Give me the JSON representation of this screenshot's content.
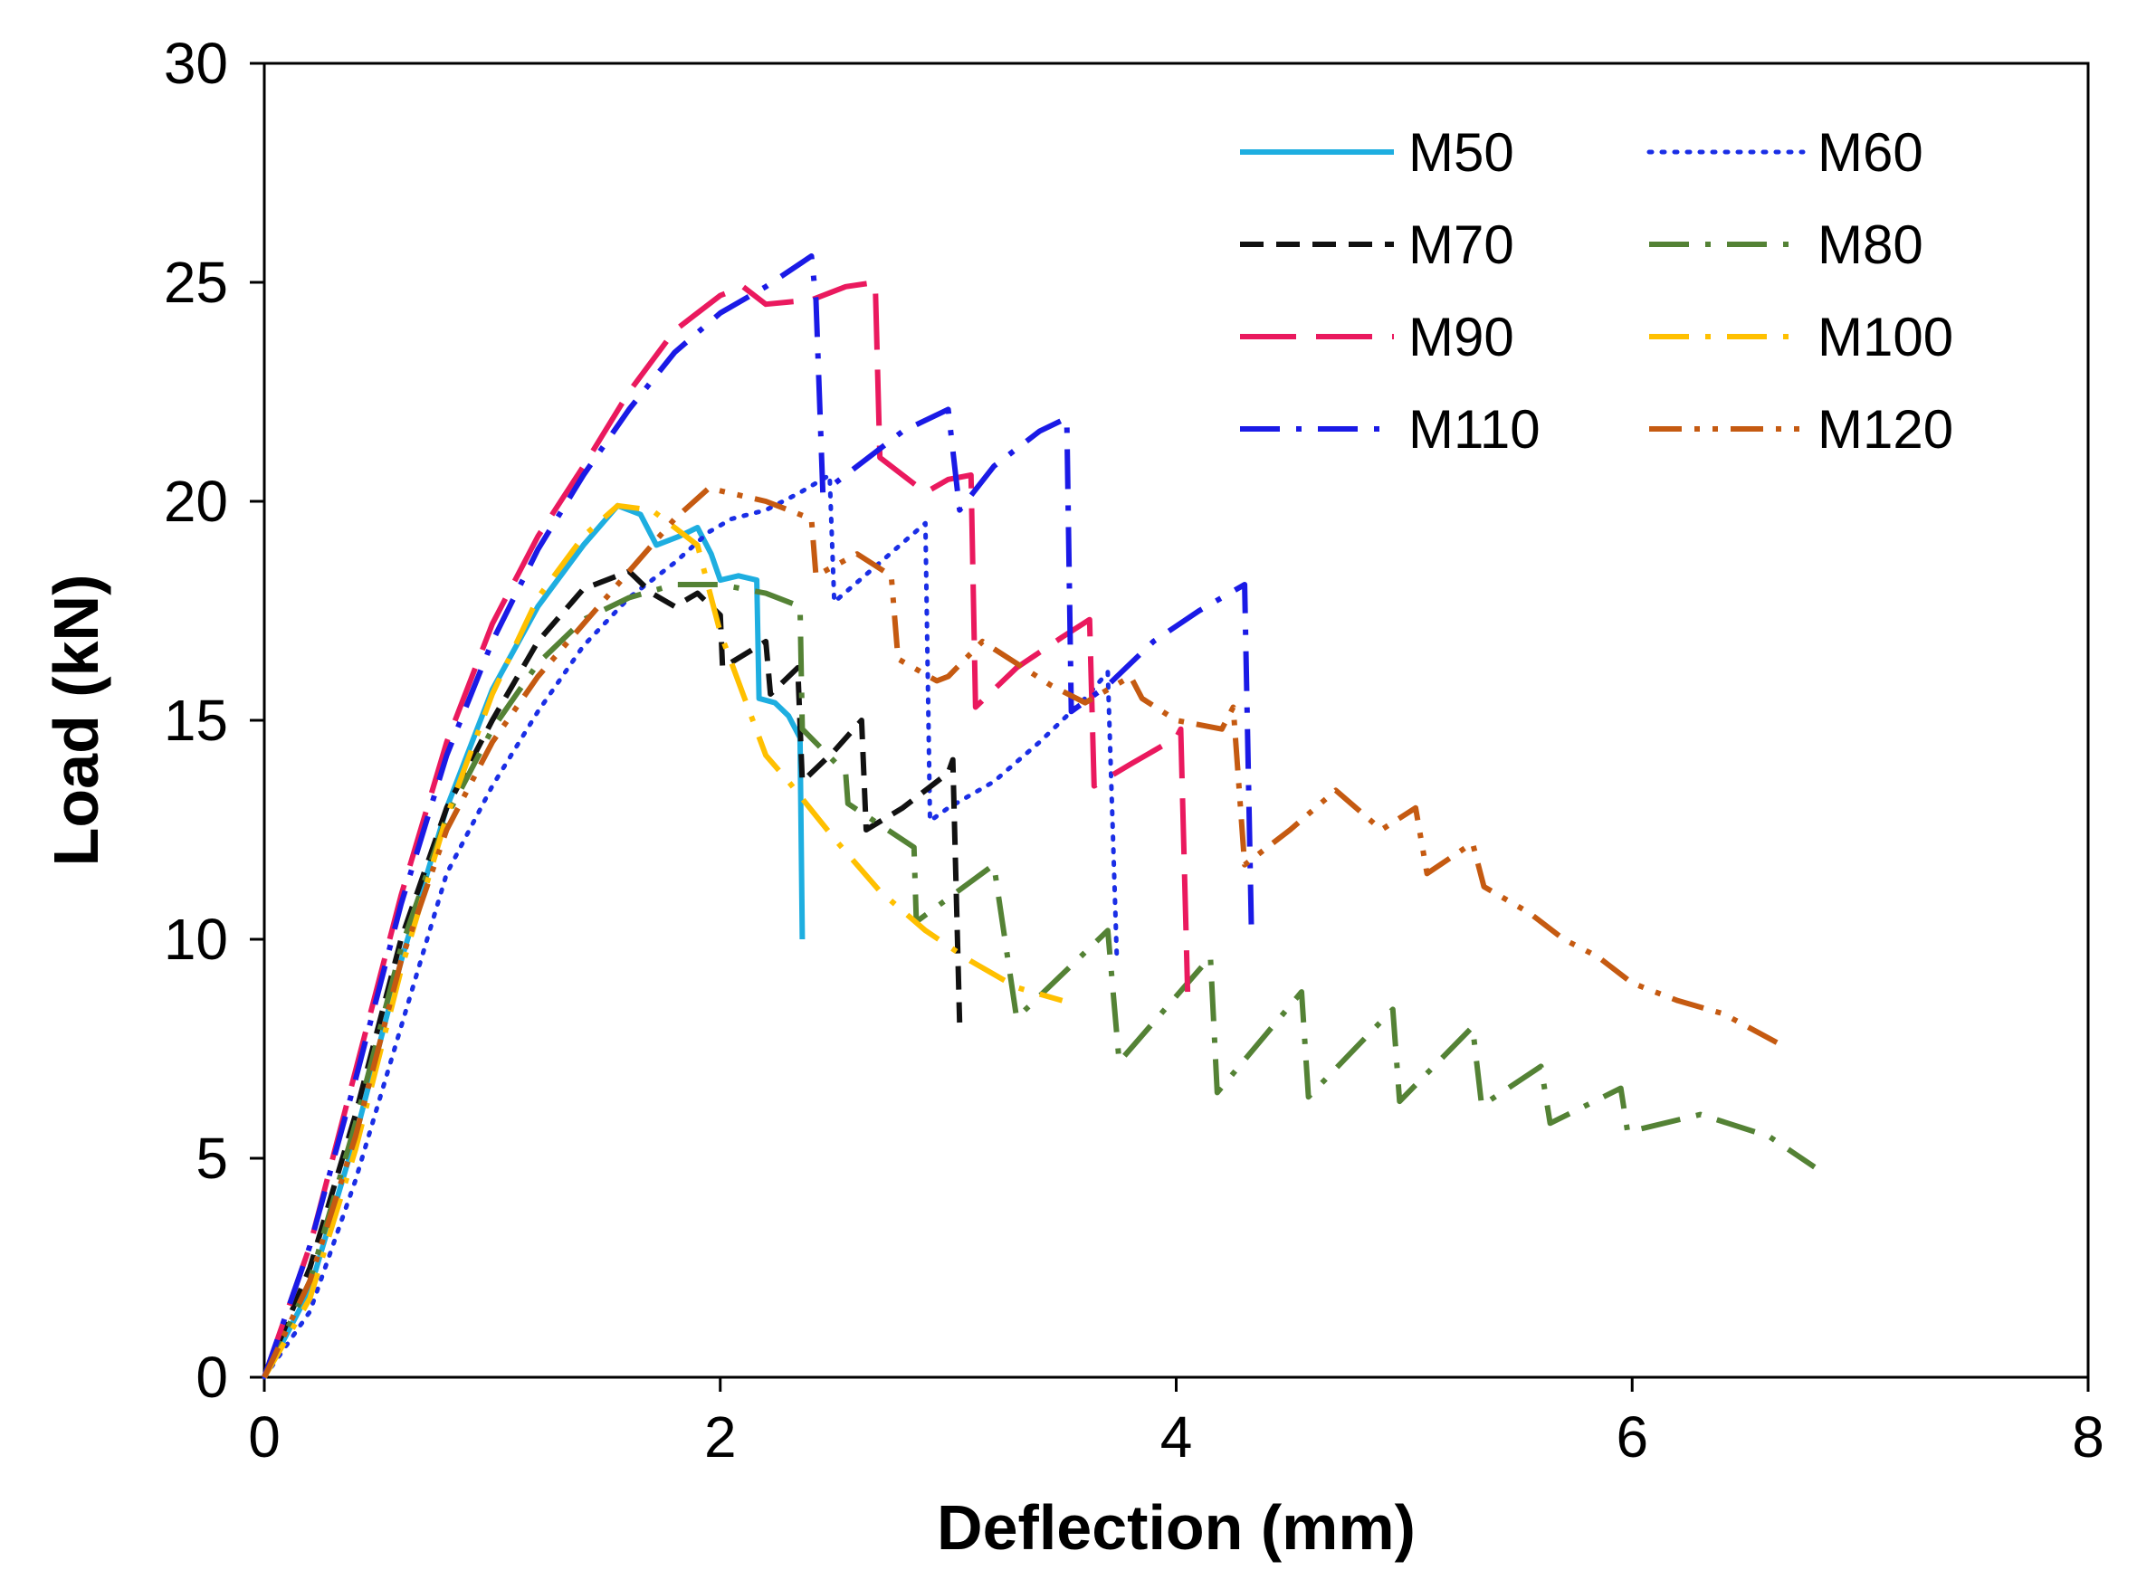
{
  "chart_data": {
    "type": "line",
    "title": "",
    "xlabel": "Deflection (mm)",
    "ylabel": "Load (kN)",
    "xlim": [
      0,
      8
    ],
    "ylim": [
      0,
      30
    ],
    "xticks": [
      0,
      2,
      4,
      6,
      8
    ],
    "yticks": [
      0,
      5,
      10,
      15,
      20,
      25,
      30
    ],
    "grid": false,
    "legend_position": "top-right",
    "series": [
      {
        "name": "M50",
        "color": "#1eaee0",
        "dash": "solid",
        "points": [
          [
            0,
            0
          ],
          [
            0.2,
            2
          ],
          [
            0.4,
            5.5
          ],
          [
            0.6,
            9.5
          ],
          [
            0.8,
            13
          ],
          [
            1.0,
            15.7
          ],
          [
            1.2,
            17.6
          ],
          [
            1.4,
            19.0
          ],
          [
            1.55,
            19.9
          ],
          [
            1.65,
            19.7
          ],
          [
            1.72,
            19.0
          ],
          [
            1.82,
            19.2
          ],
          [
            1.9,
            19.4
          ],
          [
            1.96,
            18.8
          ],
          [
            2.0,
            18.2
          ],
          [
            2.08,
            18.3
          ],
          [
            2.16,
            18.2
          ],
          [
            2.17,
            15.5
          ],
          [
            2.24,
            15.4
          ],
          [
            2.3,
            15.1
          ],
          [
            2.35,
            14.6
          ],
          [
            2.36,
            10.0
          ]
        ]
      },
      {
        "name": "M60",
        "color": "#1a2ee6",
        "dash": "dotted",
        "points": [
          [
            0,
            0
          ],
          [
            0.2,
            1.5
          ],
          [
            0.4,
            4.5
          ],
          [
            0.6,
            8.0
          ],
          [
            0.8,
            11.5
          ],
          [
            1.0,
            13.5
          ],
          [
            1.2,
            15.2
          ],
          [
            1.4,
            16.7
          ],
          [
            1.6,
            17.8
          ],
          [
            1.8,
            18.6
          ],
          [
            1.95,
            19.3
          ],
          [
            2.05,
            19.6
          ],
          [
            2.2,
            19.8
          ],
          [
            2.35,
            20.2
          ],
          [
            2.48,
            20.6
          ],
          [
            2.5,
            17.7
          ],
          [
            2.7,
            18.6
          ],
          [
            2.9,
            19.5
          ],
          [
            2.92,
            12.7
          ],
          [
            3.0,
            13.0
          ],
          [
            3.2,
            13.6
          ],
          [
            3.4,
            14.5
          ],
          [
            3.6,
            15.5
          ],
          [
            3.7,
            16.1
          ],
          [
            3.74,
            9.5
          ]
        ]
      },
      {
        "name": "M70",
        "color": "#111111",
        "dash": "dashed",
        "points": [
          [
            0,
            0
          ],
          [
            0.2,
            2.5
          ],
          [
            0.4,
            6.0
          ],
          [
            0.6,
            10.0
          ],
          [
            0.8,
            13.0
          ],
          [
            1.0,
            15.0
          ],
          [
            1.2,
            16.8
          ],
          [
            1.4,
            18.0
          ],
          [
            1.6,
            18.4
          ],
          [
            1.7,
            17.9
          ],
          [
            1.8,
            17.6
          ],
          [
            1.9,
            17.9
          ],
          [
            2.0,
            17.4
          ],
          [
            2.01,
            16.2
          ],
          [
            2.2,
            16.8
          ],
          [
            2.22,
            15.6
          ],
          [
            2.34,
            16.2
          ],
          [
            2.36,
            13.6
          ],
          [
            2.5,
            14.3
          ],
          [
            2.62,
            15.0
          ],
          [
            2.64,
            12.5
          ],
          [
            2.8,
            13.0
          ],
          [
            3.0,
            13.8
          ],
          [
            3.02,
            14.1
          ],
          [
            3.05,
            8.1
          ]
        ]
      },
      {
        "name": "M80",
        "color": "#548235",
        "dash": "dashdot",
        "points": [
          [
            0,
            0
          ],
          [
            0.2,
            2.2
          ],
          [
            0.4,
            5.8
          ],
          [
            0.6,
            9.8
          ],
          [
            0.8,
            12.8
          ],
          [
            1.0,
            14.8
          ],
          [
            1.2,
            16.3
          ],
          [
            1.4,
            17.3
          ],
          [
            1.6,
            17.8
          ],
          [
            1.8,
            18.1
          ],
          [
            2.0,
            18.1
          ],
          [
            2.2,
            17.9
          ],
          [
            2.35,
            17.6
          ],
          [
            2.36,
            14.8
          ],
          [
            2.55,
            13.8
          ],
          [
            2.56,
            13.1
          ],
          [
            2.85,
            12.1
          ],
          [
            2.86,
            10.4
          ],
          [
            3.2,
            11.7
          ],
          [
            3.3,
            8.2
          ],
          [
            3.7,
            10.2
          ],
          [
            3.75,
            7.2
          ],
          [
            4.15,
            9.6
          ],
          [
            4.18,
            6.5
          ],
          [
            4.55,
            8.8
          ],
          [
            4.58,
            6.4
          ],
          [
            4.95,
            8.4
          ],
          [
            4.98,
            6.3
          ],
          [
            5.3,
            8.0
          ],
          [
            5.34,
            6.2
          ],
          [
            5.6,
            7.1
          ],
          [
            5.64,
            5.8
          ],
          [
            5.95,
            6.6
          ],
          [
            5.98,
            5.6
          ],
          [
            6.3,
            6.0
          ],
          [
            6.6,
            5.5
          ],
          [
            6.8,
            4.8
          ]
        ]
      },
      {
        "name": "M90",
        "color": "#ea195e",
        "dash": "longdash",
        "points": [
          [
            0,
            0
          ],
          [
            0.2,
            3.0
          ],
          [
            0.4,
            7.0
          ],
          [
            0.6,
            11.0
          ],
          [
            0.8,
            14.5
          ],
          [
            1.0,
            17.2
          ],
          [
            1.2,
            19.2
          ],
          [
            1.4,
            20.8
          ],
          [
            1.6,
            22.5
          ],
          [
            1.8,
            23.9
          ],
          [
            2.0,
            24.7
          ],
          [
            2.1,
            24.9
          ],
          [
            2.2,
            24.5
          ],
          [
            2.4,
            24.6
          ],
          [
            2.55,
            24.9
          ],
          [
            2.68,
            25.0
          ],
          [
            2.7,
            21.0
          ],
          [
            2.9,
            20.2
          ],
          [
            3.0,
            20.5
          ],
          [
            3.1,
            20.6
          ],
          [
            3.12,
            15.3
          ],
          [
            3.3,
            16.2
          ],
          [
            3.5,
            16.9
          ],
          [
            3.62,
            17.3
          ],
          [
            3.64,
            13.5
          ],
          [
            3.8,
            14.0
          ],
          [
            4.0,
            14.6
          ],
          [
            4.02,
            14.8
          ],
          [
            4.05,
            8.8
          ]
        ]
      },
      {
        "name": "M100",
        "color": "#ffc000",
        "dash": "dashdot",
        "points": [
          [
            0,
            0
          ],
          [
            0.2,
            1.8
          ],
          [
            0.4,
            5.2
          ],
          [
            0.6,
            9.3
          ],
          [
            0.8,
            12.8
          ],
          [
            1.0,
            15.6
          ],
          [
            1.2,
            17.8
          ],
          [
            1.4,
            19.2
          ],
          [
            1.55,
            19.9
          ],
          [
            1.7,
            19.8
          ],
          [
            1.8,
            19.4
          ],
          [
            1.9,
            19.0
          ],
          [
            2.0,
            17.0
          ],
          [
            2.1,
            15.6
          ],
          [
            2.2,
            14.2
          ],
          [
            2.3,
            13.6
          ],
          [
            2.5,
            12.3
          ],
          [
            2.7,
            11.1
          ],
          [
            2.9,
            10.2
          ],
          [
            3.1,
            9.5
          ],
          [
            3.3,
            8.9
          ],
          [
            3.5,
            8.6
          ]
        ]
      },
      {
        "name": "M110",
        "color": "#1a1ae6",
        "dash": "dashdot",
        "points": [
          [
            0,
            0
          ],
          [
            0.2,
            3.0
          ],
          [
            0.4,
            6.8
          ],
          [
            0.6,
            10.8
          ],
          [
            0.8,
            14.2
          ],
          [
            1.0,
            16.8
          ],
          [
            1.2,
            18.9
          ],
          [
            1.4,
            20.6
          ],
          [
            1.6,
            22.1
          ],
          [
            1.8,
            23.4
          ],
          [
            2.0,
            24.3
          ],
          [
            2.2,
            24.9
          ],
          [
            2.4,
            25.6
          ],
          [
            2.42,
            24.6
          ],
          [
            2.45,
            20.2
          ],
          [
            2.6,
            20.8
          ],
          [
            2.8,
            21.6
          ],
          [
            3.0,
            22.1
          ],
          [
            3.05,
            19.8
          ],
          [
            3.2,
            20.8
          ],
          [
            3.4,
            21.6
          ],
          [
            3.52,
            21.9
          ],
          [
            3.54,
            15.2
          ],
          [
            3.7,
            15.8
          ],
          [
            3.9,
            16.8
          ],
          [
            4.1,
            17.5
          ],
          [
            4.3,
            18.1
          ],
          [
            4.33,
            10.2
          ]
        ]
      },
      {
        "name": "M120",
        "color": "#c55a11",
        "dash": "dashdotdot",
        "points": [
          [
            0,
            0
          ],
          [
            0.2,
            2.2
          ],
          [
            0.4,
            5.5
          ],
          [
            0.6,
            9.5
          ],
          [
            0.8,
            12.5
          ],
          [
            1.0,
            14.5
          ],
          [
            1.2,
            16.0
          ],
          [
            1.4,
            17.2
          ],
          [
            1.6,
            18.4
          ],
          [
            1.8,
            19.6
          ],
          [
            1.95,
            20.3
          ],
          [
            2.2,
            20.0
          ],
          [
            2.4,
            19.6
          ],
          [
            2.42,
            18.3
          ],
          [
            2.6,
            18.8
          ],
          [
            2.75,
            18.3
          ],
          [
            2.78,
            16.4
          ],
          [
            2.95,
            15.9
          ],
          [
            3.0,
            16.0
          ],
          [
            3.15,
            16.8
          ],
          [
            3.3,
            16.3
          ],
          [
            3.45,
            15.8
          ],
          [
            3.6,
            15.4
          ],
          [
            3.8,
            16.0
          ],
          [
            3.85,
            15.5
          ],
          [
            4.0,
            15.0
          ],
          [
            4.2,
            14.8
          ],
          [
            4.25,
            15.3
          ],
          [
            4.3,
            11.7
          ],
          [
            4.5,
            12.5
          ],
          [
            4.7,
            13.4
          ],
          [
            4.9,
            12.5
          ],
          [
            5.05,
            13.0
          ],
          [
            5.1,
            11.5
          ],
          [
            5.3,
            12.2
          ],
          [
            5.35,
            11.2
          ],
          [
            5.55,
            10.6
          ],
          [
            5.7,
            10.0
          ],
          [
            5.85,
            9.6
          ],
          [
            6.0,
            9.0
          ],
          [
            6.2,
            8.6
          ],
          [
            6.4,
            8.3
          ],
          [
            6.65,
            7.6
          ]
        ]
      }
    ]
  }
}
